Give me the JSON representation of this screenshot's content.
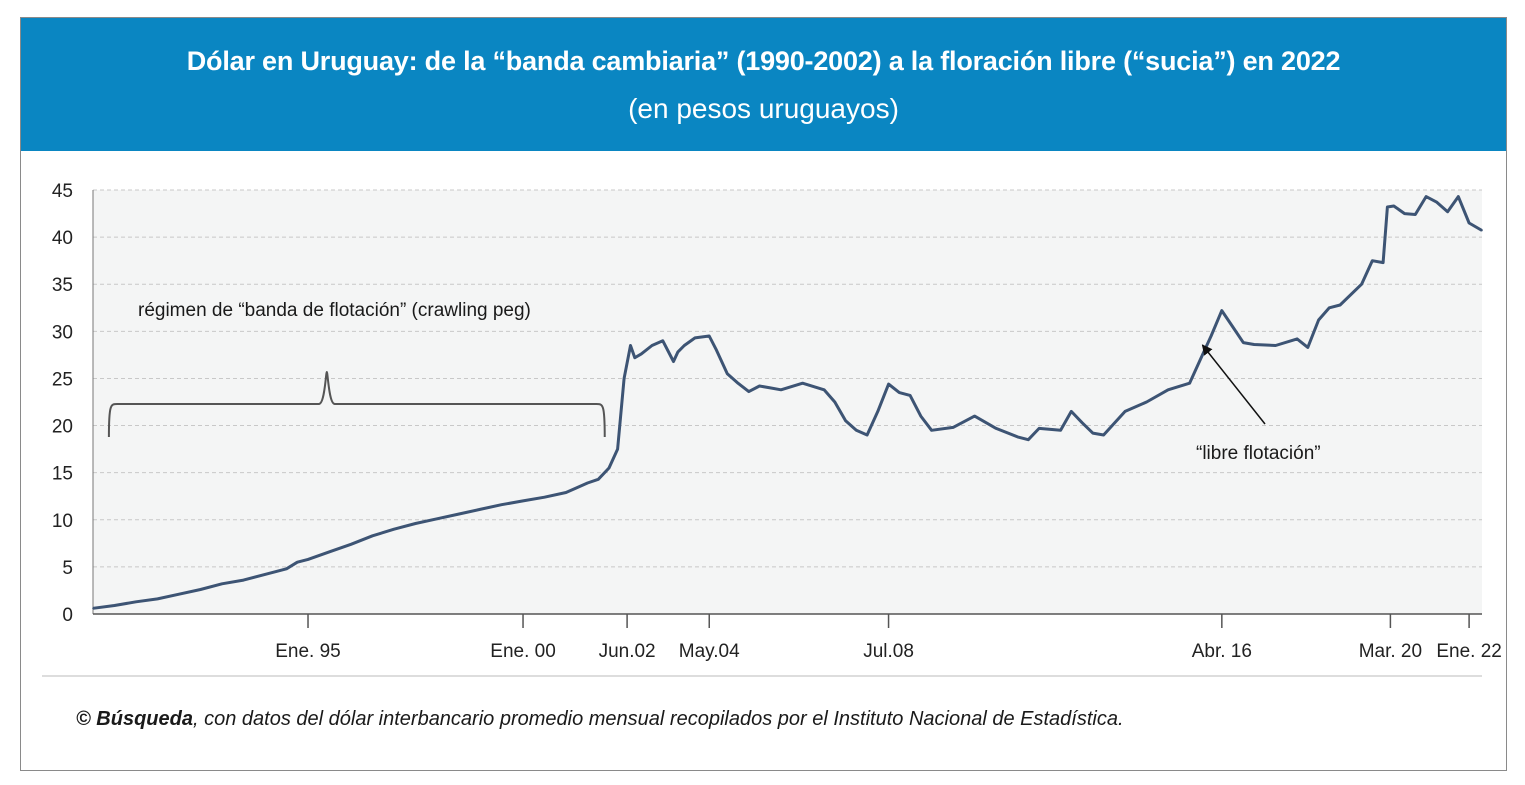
{
  "header": {
    "title": "Dólar en Uruguay: de la “banda cambiaria” (1990-2002) a la floración libre (“sucia”) en 2022",
    "subtitle": "(en pesos uruguayos)"
  },
  "footer": {
    "source_name": "© Búsqueda",
    "source_text": ", con datos del dólar interbancario promedio mensual recopilados por el Instituto Nacional de Estadística."
  },
  "colors": {
    "header_bg": "#0a86c2",
    "line": "#3d5474",
    "plot_bg": "#f4f5f5",
    "grid": "#c8c8c8"
  },
  "chart_data": {
    "type": "line",
    "title": "Dólar en Uruguay: de la “banda cambiaria” (1990-2002) a la floración libre (“sucia”) en 2022",
    "subtitle": "(en pesos uruguayos)",
    "xlabel": "",
    "ylabel": "",
    "ylim": [
      0,
      45
    ],
    "xlim": [
      1990.0,
      2022.3
    ],
    "yticks": [
      0,
      5,
      10,
      15,
      20,
      25,
      30,
      35,
      40,
      45
    ],
    "xticks": [
      {
        "label": "Ene. 95",
        "x": 1995.0
      },
      {
        "label": "Ene. 00",
        "x": 2000.0
      },
      {
        "label": "Jun.02",
        "x": 2002.42
      },
      {
        "label": "May.04",
        "x": 2004.33
      },
      {
        "label": "Jul.08",
        "x": 2008.5
      },
      {
        "label": "Abr. 16",
        "x": 2016.25
      },
      {
        "label": "Mar. 20",
        "x": 2020.17
      },
      {
        "label": "Ene. 22",
        "x": 2022.0
      }
    ],
    "grid": true,
    "legend": "none",
    "series": [
      {
        "x": [
          1990.0,
          1990.5,
          1991.0,
          1991.5,
          1992.0,
          1992.5,
          1993.0,
          1993.5,
          1994.0,
          1994.5,
          1994.75,
          1995.0,
          1995.5,
          1996.0,
          1996.5,
          1997.0,
          1997.5,
          1998.0,
          1998.5,
          1999.0,
          1999.5,
          2000.0,
          2000.5,
          2001.0,
          2001.25,
          2001.5,
          2001.75,
          2002.0,
          2002.2,
          2002.35,
          2002.5,
          2002.6,
          2002.75,
          2003.0,
          2003.25,
          2003.5,
          2003.6,
          2003.75,
          2004.0,
          2004.33,
          2004.5,
          2004.75,
          2005.0,
          2005.25,
          2005.5,
          2005.75,
          2006.0,
          2006.5,
          2007.0,
          2007.25,
          2007.5,
          2007.75,
          2008.0,
          2008.25,
          2008.5,
          2008.75,
          2009.0,
          2009.25,
          2009.5,
          2010.0,
          2010.5,
          2011.0,
          2011.5,
          2011.75,
          2012.0,
          2012.5,
          2012.75,
          2013.0,
          2013.25,
          2013.5,
          2014.0,
          2014.5,
          2015.0,
          2015.5,
          2015.75,
          2016.0,
          2016.25,
          2016.5,
          2016.75,
          2017.0,
          2017.5,
          2018.0,
          2018.25,
          2018.5,
          2018.75,
          2019.0,
          2019.5,
          2019.75,
          2020.0,
          2020.1,
          2020.25,
          2020.5,
          2020.75,
          2021.0,
          2021.25,
          2021.5,
          2021.75,
          2022.0,
          2022.3
        ],
        "values": [
          0.6,
          0.9,
          1.3,
          1.6,
          2.1,
          2.6,
          3.2,
          3.6,
          4.2,
          4.8,
          5.5,
          5.8,
          6.6,
          7.4,
          8.3,
          9.0,
          9.6,
          10.1,
          10.6,
          11.1,
          11.6,
          12.0,
          12.4,
          12.9,
          13.4,
          13.9,
          14.3,
          15.5,
          17.5,
          25.0,
          28.5,
          27.2,
          27.6,
          28.5,
          29.0,
          26.8,
          27.8,
          28.5,
          29.3,
          29.5,
          28.0,
          25.5,
          24.5,
          23.6,
          24.2,
          24.0,
          23.8,
          24.5,
          23.8,
          22.5,
          20.5,
          19.5,
          19.0,
          21.5,
          24.4,
          23.5,
          23.2,
          21.0,
          19.5,
          19.8,
          21.0,
          19.7,
          18.8,
          18.5,
          19.7,
          19.5,
          21.5,
          20.3,
          19.2,
          19.0,
          21.5,
          22.5,
          23.8,
          24.5,
          27.0,
          29.5,
          32.2,
          30.5,
          28.8,
          28.6,
          28.5,
          29.2,
          28.3,
          31.2,
          32.5,
          32.8,
          35.0,
          37.5,
          37.3,
          43.2,
          43.3,
          42.5,
          42.4,
          44.3,
          43.7,
          42.7,
          44.3,
          41.5,
          40.7
        ]
      }
    ],
    "annotations": [
      {
        "text": "régimen de “banda de flotación” (crawling peg)",
        "x_range": [
          1990.3,
          2001.9
        ]
      },
      {
        "text": "“libre flotación”",
        "points_to": {
          "x": 2015.8,
          "y": 29.6
        }
      }
    ]
  }
}
